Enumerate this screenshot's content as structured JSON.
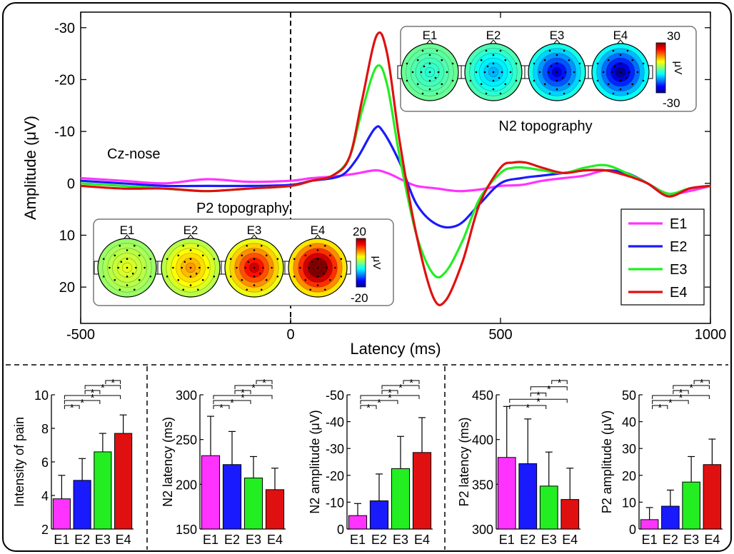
{
  "colors": {
    "E1": "#ff33ff",
    "E2": "#1a1aff",
    "E3": "#22ee22",
    "E4": "#e01010"
  },
  "chart_data": [
    {
      "type": "line",
      "annotation": "Cz-nose",
      "xlabel": "Latency (ms)",
      "ylabel": "Amplitude (μV)",
      "xlim": [
        -500,
        1000
      ],
      "ylim": [
        -33,
        27
      ],
      "y_reversed": true,
      "xticks": [
        -500,
        0,
        500,
        1000
      ],
      "yticks": [
        -30,
        -20,
        -10,
        0,
        10,
        20
      ],
      "stimulus_marker_x": 0,
      "legend": {
        "placement": "bottom-right",
        "entries": [
          "E1",
          "E2",
          "E3",
          "E4"
        ]
      },
      "series": [
        {
          "name": "E1",
          "x": [
            -500,
            -400,
            -300,
            -200,
            -100,
            0,
            50,
            100,
            150,
            200,
            230,
            270,
            300,
            350,
            400,
            450,
            500,
            550,
            600,
            650,
            700,
            750,
            800,
            850,
            900,
            950,
            1000
          ],
          "values": [
            -1,
            -0.5,
            0,
            -0.8,
            -0.3,
            -0.5,
            -1,
            -1.3,
            -1.8,
            -2.5,
            -2,
            -0.5,
            0.5,
            1,
            1.5,
            1.2,
            0.5,
            0.3,
            -0.5,
            -1,
            -1.5,
            -2.5,
            -2,
            0,
            2,
            1.5,
            0.5
          ]
        },
        {
          "name": "E2",
          "x": [
            -500,
            -400,
            -300,
            -200,
            -100,
            0,
            50,
            100,
            130,
            160,
            200,
            220,
            260,
            300,
            350,
            400,
            450,
            500,
            550,
            600,
            650,
            700,
            750,
            800,
            850,
            900,
            950,
            1000
          ],
          "values": [
            -0.5,
            0,
            0.5,
            0.5,
            0.5,
            0.3,
            -0.5,
            -1,
            -2,
            -5,
            -10.5,
            -10,
            -4,
            4,
            8,
            8,
            4,
            0,
            -1,
            -1.5,
            -2,
            -2.5,
            -2.5,
            -2,
            0,
            2.5,
            1,
            0.5
          ]
        },
        {
          "name": "E3",
          "x": [
            -500,
            -400,
            -300,
            -200,
            -100,
            0,
            50,
            100,
            140,
            170,
            205,
            230,
            260,
            300,
            340,
            370,
            410,
            450,
            500,
            530,
            560,
            600,
            650,
            700,
            750,
            800,
            850,
            900,
            950,
            1000
          ],
          "values": [
            0,
            0.5,
            1,
            1.5,
            1,
            0.5,
            -0.5,
            -1.5,
            -5,
            -14,
            -22.5,
            -19,
            -5,
            10,
            17.5,
            17,
            11,
            3,
            -2,
            -3,
            -3,
            -2.5,
            -2,
            -3,
            -3.5,
            -2,
            0,
            2,
            1,
            0.5
          ]
        },
        {
          "name": "E4",
          "x": [
            -500,
            -400,
            -300,
            -200,
            -100,
            0,
            50,
            100,
            140,
            170,
            205,
            230,
            260,
            300,
            340,
            370,
            410,
            450,
            500,
            530,
            560,
            600,
            650,
            700,
            750,
            800,
            850,
            900,
            950,
            1000
          ],
          "values": [
            0.5,
            1,
            1,
            1.5,
            1,
            0.5,
            -0.5,
            -1.5,
            -5,
            -16,
            -28.5,
            -25,
            -8,
            10,
            22,
            22.5,
            15,
            4,
            -3,
            -4,
            -4,
            -3,
            -2,
            -2.5,
            -2.5,
            -1.5,
            0,
            2.5,
            1,
            0.5
          ]
        }
      ]
    },
    {
      "type": "heatmap",
      "title": "N2 topography",
      "panels": [
        "E1",
        "E2",
        "E3",
        "E4"
      ],
      "colorbar": {
        "max_label": "30",
        "min_label": "-30",
        "unit": "μV"
      },
      "center_values": [
        -5,
        -12,
        -25,
        -29
      ]
    },
    {
      "type": "heatmap",
      "title": "P2 topography",
      "panels": [
        "E1",
        "E2",
        "E3",
        "E4"
      ],
      "colorbar": {
        "max_label": "20",
        "min_label": "-20",
        "unit": "μV"
      },
      "center_values": [
        4,
        9,
        17,
        24
      ]
    },
    {
      "type": "bar",
      "ylabel": "Intensity of pain",
      "categories": [
        "E1",
        "E2",
        "E3",
        "E4"
      ],
      "values": [
        3.8,
        4.9,
        6.6,
        7.7
      ],
      "errors": [
        1.4,
        1.3,
        1.1,
        1.1
      ],
      "ylim": [
        2,
        10
      ],
      "yticks": [
        "2",
        "4",
        "6",
        "8",
        "10"
      ],
      "reversed": false,
      "significance": [
        [
          0,
          1
        ],
        [
          0,
          2
        ],
        [
          0,
          3
        ],
        [
          1,
          2
        ],
        [
          1,
          3
        ],
        [
          2,
          3
        ]
      ]
    },
    {
      "type": "bar",
      "ylabel": "N2 latency (ms)",
      "categories": [
        "E1",
        "E2",
        "E3",
        "E4"
      ],
      "values": [
        232,
        222,
        207,
        194
      ],
      "errors": [
        44,
        37,
        24,
        24
      ],
      "ylim": [
        150,
        300
      ],
      "yticks": [
        "150",
        "200",
        "250",
        "300"
      ],
      "reversed": false,
      "significance": [
        [
          0,
          1
        ],
        [
          0,
          2
        ],
        [
          0,
          3
        ],
        [
          1,
          2
        ],
        [
          1,
          3
        ],
        [
          2,
          3
        ]
      ]
    },
    {
      "type": "bar",
      "ylabel": "N2 amplitude (μV)",
      "categories": [
        "E1",
        "E2",
        "E3",
        "E4"
      ],
      "values": [
        -5,
        -10.5,
        -22.5,
        -28.5
      ],
      "errors": [
        4.5,
        10,
        12,
        13
      ],
      "ylim": [
        0,
        -50
      ],
      "yticks": [
        "0",
        "-10",
        "-20",
        "-30",
        "-40",
        "-50"
      ],
      "reversed": true,
      "significance": [
        [
          0,
          1
        ],
        [
          0,
          2
        ],
        [
          0,
          3
        ],
        [
          1,
          2
        ],
        [
          1,
          3
        ],
        [
          2,
          3
        ]
      ]
    },
    {
      "type": "bar",
      "ylabel": "P2 latency (ms)",
      "categories": [
        "E1",
        "E2",
        "E3",
        "E4"
      ],
      "values": [
        380,
        373,
        348,
        333
      ],
      "errors": [
        57,
        50,
        38,
        35
      ],
      "ylim": [
        300,
        450
      ],
      "yticks": [
        "300",
        "350",
        "400",
        "450"
      ],
      "reversed": false,
      "significance": [
        [
          0,
          2
        ],
        [
          0,
          3
        ],
        [
          1,
          2
        ],
        [
          1,
          3
        ],
        [
          2,
          3
        ]
      ]
    },
    {
      "type": "bar",
      "ylabel": "P2 amplitude (μV)",
      "categories": [
        "E1",
        "E2",
        "E3",
        "E4"
      ],
      "values": [
        3.5,
        8.5,
        17.5,
        24
      ],
      "errors": [
        4.5,
        6,
        9.5,
        9.5
      ],
      "ylim": [
        0,
        50
      ],
      "yticks": [
        "0",
        "10",
        "20",
        "30",
        "40",
        "50"
      ],
      "reversed": false,
      "significance": [
        [
          0,
          1
        ],
        [
          0,
          2
        ],
        [
          0,
          3
        ],
        [
          1,
          2
        ],
        [
          1,
          3
        ],
        [
          2,
          3
        ]
      ]
    }
  ]
}
